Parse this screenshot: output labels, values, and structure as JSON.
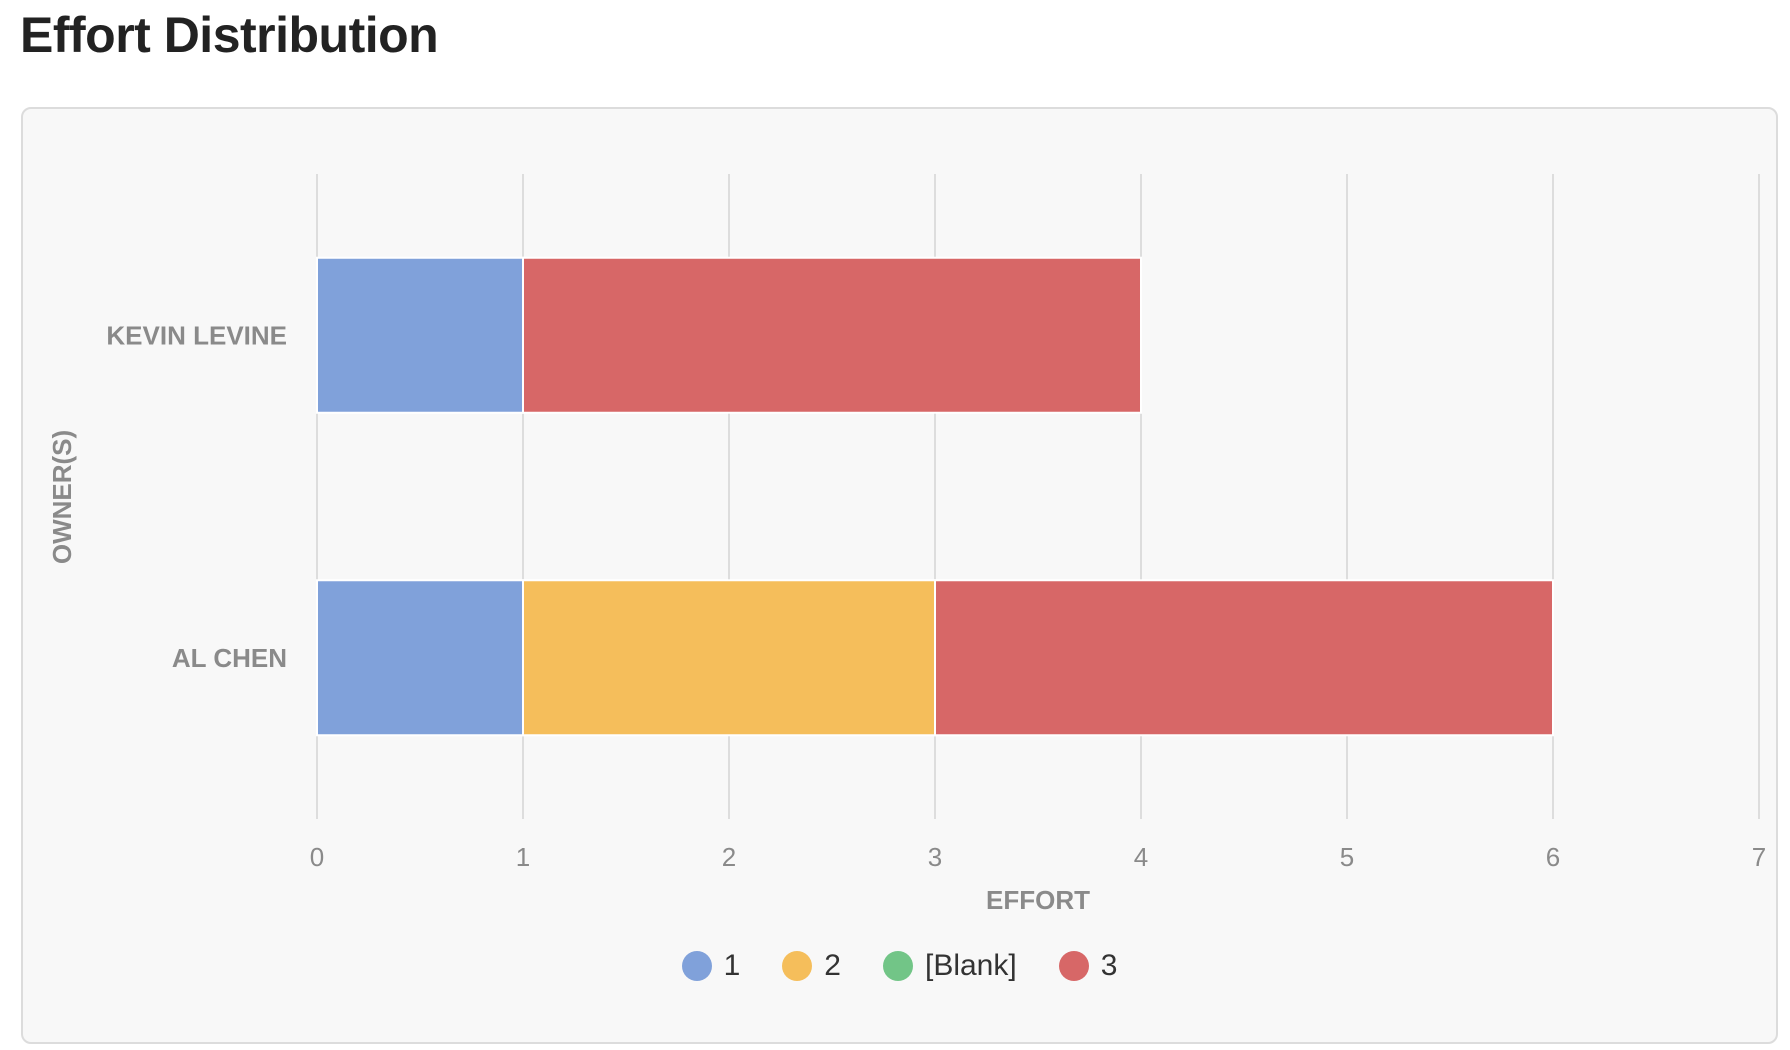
{
  "page": {
    "title": "Effort Distribution"
  },
  "chart_data": {
    "type": "bar",
    "orientation": "horizontal",
    "stacked": true,
    "categories": [
      "KEVIN LEVINE",
      "AL CHEN"
    ],
    "series": [
      {
        "name": "1",
        "color": "#80a1da",
        "values": [
          1,
          1
        ]
      },
      {
        "name": "2",
        "color": "#f5be5b",
        "values": [
          0,
          2
        ]
      },
      {
        "name": "[Blank]",
        "color": "#72c587",
        "values": [
          0,
          0
        ]
      },
      {
        "name": "3",
        "color": "#d76767",
        "values": [
          3,
          3
        ]
      }
    ],
    "xlabel": "EFFORT",
    "ylabel": "OWNER(S)",
    "xlim": [
      0,
      7
    ],
    "xticks": [
      "0",
      "1",
      "2",
      "3",
      "4",
      "5",
      "6",
      "7"
    ],
    "grid": true,
    "legend_position": "bottom"
  }
}
